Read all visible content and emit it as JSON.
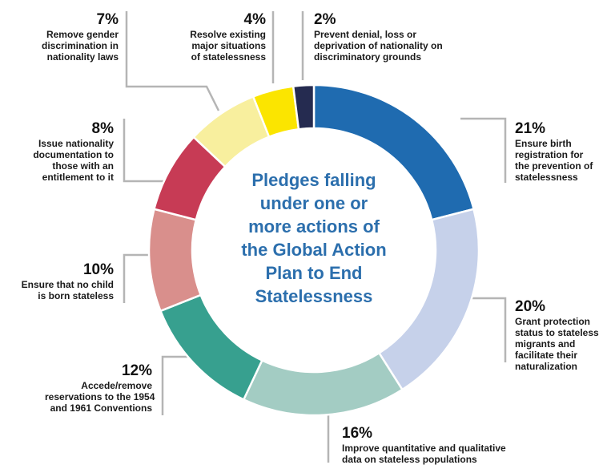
{
  "chart_data": {
    "type": "pie",
    "title": "Pledges falling under one or more actions of the Global Action Plan to End Statelessness",
    "title_lines": [
      "Pledges falling",
      "under one or",
      "more actions of",
      "the Global Action",
      "Plan to End",
      "Statelessness"
    ],
    "donut": true,
    "slices": [
      {
        "id": "birth-registration",
        "value": 21,
        "pct_label": "21%",
        "label_lines": [
          "Ensure birth",
          "registration for",
          "the prevention of",
          "statelessness"
        ],
        "color": "#1f6bb0"
      },
      {
        "id": "protection-status",
        "value": 20,
        "pct_label": "20%",
        "label_lines": [
          "Grant protection",
          "status to stateless",
          "migrants and",
          "facilitate their",
          "naturalization"
        ],
        "color": "#c6d1ea"
      },
      {
        "id": "improve-data",
        "value": 16,
        "pct_label": "16%",
        "label_lines": [
          "Improve quantitative and qualitative",
          "data on stateless populations"
        ],
        "color": "#a3ccc3"
      },
      {
        "id": "accede-conventions",
        "value": 12,
        "pct_label": "12%",
        "label_lines": [
          "Accede/remove",
          "reservations to the 1954",
          "and 1961 Conventions"
        ],
        "color": "#37a08f"
      },
      {
        "id": "no-child-stateless",
        "value": 10,
        "pct_label": "10%",
        "label_lines": [
          "Ensure that no child",
          "is born stateless"
        ],
        "color": "#d98f8c"
      },
      {
        "id": "nationality-documentation",
        "value": 8,
        "pct_label": "8%",
        "label_lines": [
          "Issue nationality",
          "documentation to",
          "those with an",
          "entitlement to it"
        ],
        "color": "#c73b55"
      },
      {
        "id": "gender-discrimination",
        "value": 7,
        "pct_label": "7%",
        "label_lines": [
          "Remove gender",
          "discrimination in",
          "nationality laws"
        ],
        "color": "#f8ef9e"
      },
      {
        "id": "resolve-situations",
        "value": 4,
        "pct_label": "4%",
        "label_lines": [
          "Resolve existing",
          "major situations",
          "of statelessness"
        ],
        "color": "#fbe500"
      },
      {
        "id": "prevent-denial",
        "value": 2,
        "pct_label": "2%",
        "label_lines": [
          "Prevent denial, loss or",
          "deprivation of nationality on",
          "discriminatory grounds"
        ],
        "color": "#252b50"
      }
    ],
    "leader_line_color": "#b5b5b5"
  }
}
